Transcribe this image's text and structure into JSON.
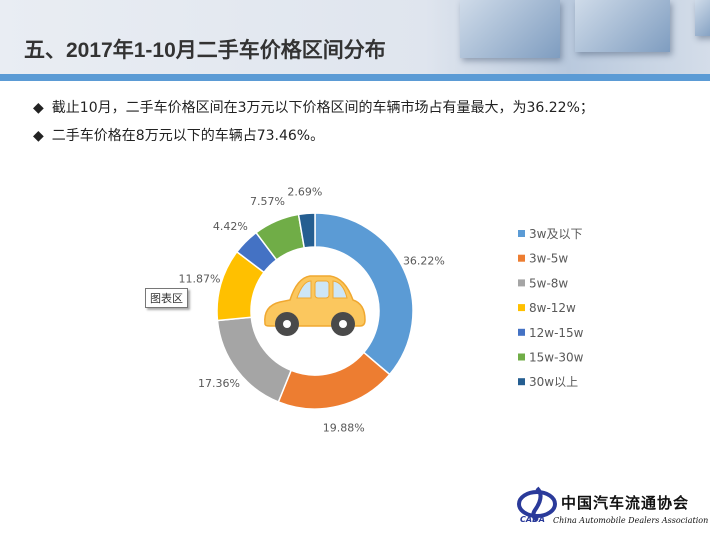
{
  "header": {
    "title": "五、2017年1-10月二手车价格区间分布"
  },
  "bullets": [
    "截止10月，二手车价格区间在3万元以下价格区间的车辆市场占有量最大，为36.22%；",
    "二手车价格在8万元以下的车辆占73.46%。"
  ],
  "bullet_icon": "diamond",
  "tooltip": "图表区",
  "logo": {
    "cn": "中国汽车流通协会",
    "en": "China Automobile Dealers Association",
    "abbr": "CADA"
  },
  "chart_data": {
    "type": "pie",
    "donut": true,
    "categories": [
      "3w及以下",
      "3w-5w",
      "5w-8w",
      "8w-12w",
      "12w-15w",
      "15w-30w",
      "30w以上"
    ],
    "values": [
      36.22,
      19.88,
      17.36,
      11.87,
      4.42,
      7.57,
      2.69
    ],
    "data_labels": [
      "36.22%",
      "19.88%",
      "17.36%",
      "11.87%",
      "4.42%",
      "7.57%",
      "2.69%"
    ],
    "colors": [
      "#5b9bd5",
      "#ed7d31",
      "#a5a5a5",
      "#ffc000",
      "#4472c4",
      "#70ad47",
      "#255e91"
    ],
    "legend_position": "right",
    "center_icon": "car-icon"
  }
}
